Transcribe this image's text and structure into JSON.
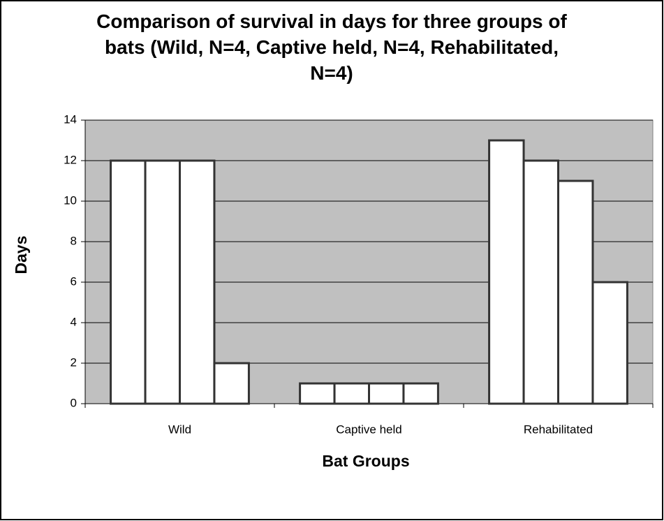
{
  "chart_data": {
    "type": "bar",
    "title": "Comparison of survival in days for three groups of bats (Wild, N=4, Captive held, N=4, Rehabilitated, N=4)",
    "x_label": "Bat Groups",
    "y_label": "Days",
    "categories": [
      "Wild",
      "Captive held",
      "Rehabilitated"
    ],
    "series": [
      {
        "color": "#ffffff",
        "values": [
          12,
          1,
          13
        ]
      },
      {
        "color": "#ffffff",
        "values": [
          12,
          1,
          12
        ]
      },
      {
        "color": "#ffffff",
        "values": [
          12,
          1,
          11
        ]
      },
      {
        "color": "#ffffff",
        "values": [
          2,
          1,
          6
        ]
      }
    ],
    "ylim": [
      0,
      14
    ],
    "yticks": [
      0,
      2,
      4,
      6,
      8,
      10,
      12,
      14
    ],
    "grid": true,
    "plot_background": "#c0c0c0"
  }
}
